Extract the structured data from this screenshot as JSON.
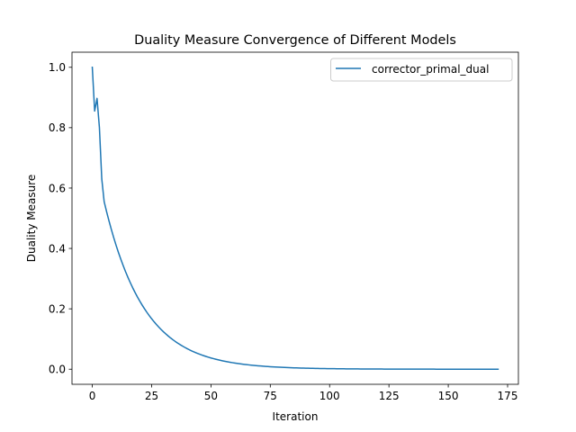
{
  "chart_data": {
    "type": "line",
    "title": "Duality Measure Convergence of Different Models",
    "xlabel": "Iteration",
    "ylabel": "Duality Measure",
    "xlim": [
      -8.55,
      179.55
    ],
    "ylim": [
      -0.05,
      1.05
    ],
    "xticks": [
      0,
      25,
      50,
      75,
      100,
      125,
      150,
      175
    ],
    "xtick_labels": [
      "0",
      "25",
      "50",
      "75",
      "100",
      "125",
      "150",
      "175"
    ],
    "yticks": [
      0.0,
      0.2,
      0.4,
      0.6,
      0.8,
      1.0
    ],
    "ytick_labels": [
      "0.0",
      "0.2",
      "0.4",
      "0.6",
      "0.8",
      "1.0"
    ],
    "grid": false,
    "legend": "top-right",
    "series": [
      {
        "name": "corrector_primal_dual",
        "color": "#1f77b4",
        "decay": {
          "start_x": 5,
          "end_x": 171,
          "start_y": 0.555,
          "rate": 0.06
        },
        "x": [
          0,
          1,
          2,
          3,
          4,
          5
        ],
        "y": [
          1.0,
          0.855,
          0.897,
          0.8,
          0.63,
          0.555
        ]
      }
    ]
  }
}
